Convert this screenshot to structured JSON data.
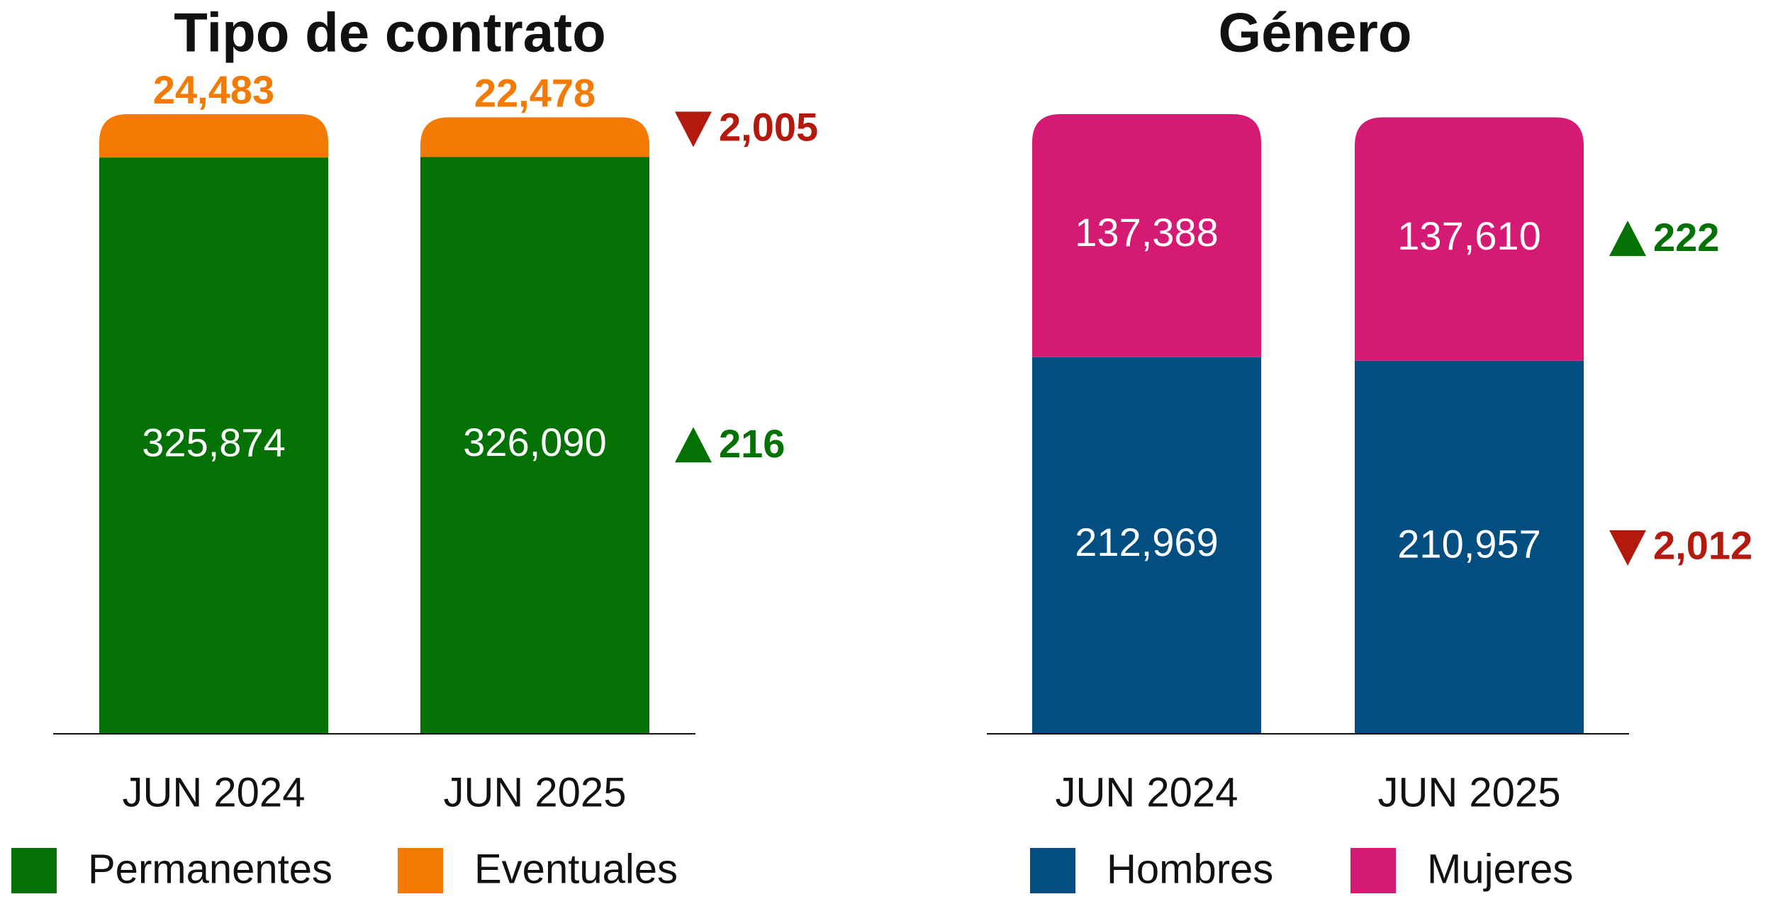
{
  "chart_data": [
    {
      "type": "stacked-bar",
      "title": "Tipo de contrato",
      "categories": [
        "JUN 2024",
        "JUN 2025"
      ],
      "series": [
        {
          "name": "Permanentes",
          "color": "#037103",
          "values": [
            325874,
            326090
          ],
          "value_labels": [
            "325,874",
            "326,090"
          ],
          "change": "216",
          "change_direction": "up",
          "change_color": "#037103"
        },
        {
          "name": "Eventuales",
          "color": "#f27a05",
          "values": [
            24483,
            22478
          ],
          "value_labels": [
            "24,483",
            "22,478"
          ],
          "change": "2,005",
          "change_direction": "down",
          "change_color": "#b3190c"
        }
      ]
    },
    {
      "type": "stacked-bar",
      "title": "Género",
      "categories": [
        "JUN 2024",
        "JUN 2025"
      ],
      "series": [
        {
          "name": "Hombres",
          "color": "#024e80",
          "values": [
            212969,
            210957
          ],
          "value_labels": [
            "212,969",
            "210,957"
          ],
          "change": "2,012",
          "change_direction": "down",
          "change_color": "#b3190c"
        },
        {
          "name": "Mujeres",
          "color": "#d51a74",
          "values": [
            137388,
            137610
          ],
          "value_labels": [
            "137,388",
            "137,610"
          ],
          "change": "222",
          "change_direction": "up",
          "change_color": "#037103"
        }
      ]
    }
  ]
}
